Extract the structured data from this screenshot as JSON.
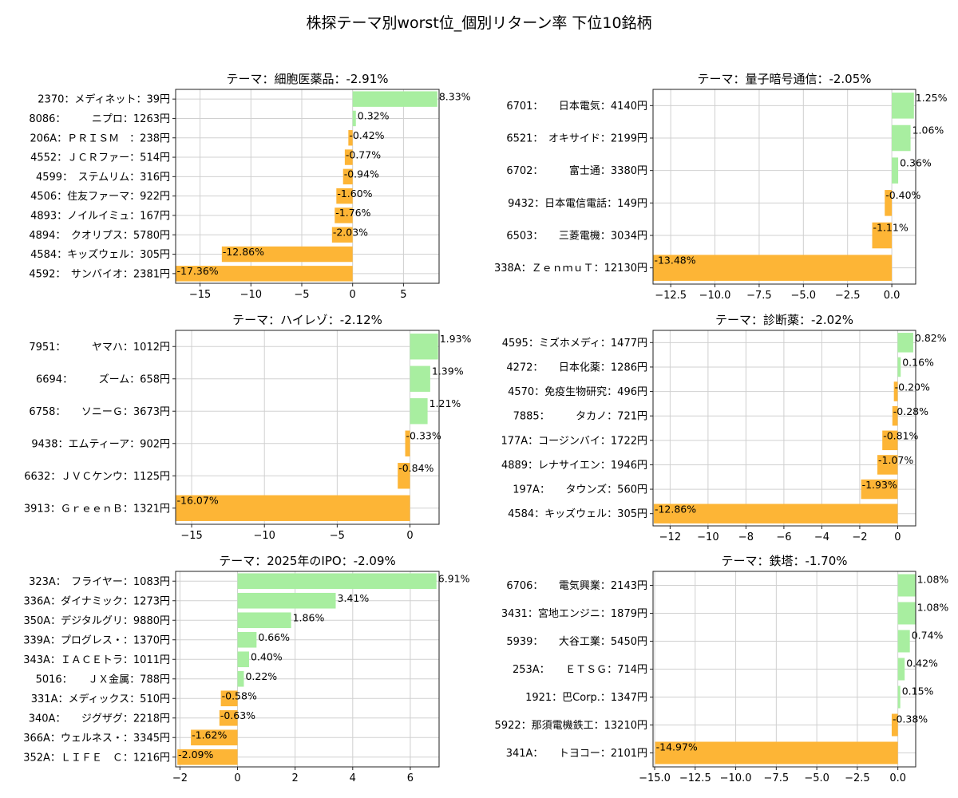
{
  "suptitle": "株探テーマ別worst位_個別リターン率 下位10銘柄",
  "colors": {
    "positive": "#a8eea0",
    "negative": "#fdb536"
  },
  "chart_data": [
    {
      "type": "bar",
      "orientation": "horizontal",
      "title": "テーマ：細胞医薬品：-2.91%",
      "categories": [
        "2370：メディネット：39円",
        "8086：　　　ニプロ：1263円",
        "206A：ＰＲＩＳＭ　：238円",
        "4552：ＪＣＲファー：514円",
        "4599：　ステムリム：316円",
        "4506：住友ファーマ：922円",
        "4893：ノイルイミュ：167円",
        "4894：　クオリプス：5780円",
        "4584：キッズウェル：305円",
        "4592：　サンバイオ：2381円"
      ],
      "values": [
        8.33,
        0.32,
        -0.42,
        -0.77,
        -0.94,
        -1.6,
        -1.76,
        -2.03,
        -12.86,
        -17.36
      ],
      "value_labels": [
        "8.33%",
        "0.32%",
        "-0.42%",
        "-0.77%",
        "-0.94%",
        "-1.60%",
        "-1.76%",
        "-2.03%",
        "-12.86%",
        "-17.36%"
      ],
      "xticks": [
        -15,
        -10,
        -5,
        0,
        5
      ],
      "xtick_labels": [
        "−15",
        "−10",
        "−5",
        "0",
        "5"
      ],
      "xlim": [
        -17.4,
        8.5
      ],
      "grid": true
    },
    {
      "type": "bar",
      "orientation": "horizontal",
      "title": "テーマ：量子暗号通信：-2.05%",
      "categories": [
        "6701：　　日本電気：4140円",
        "6521：　オキサイド：2199円",
        "6702：　　　富士通：3380円",
        "9432：日本電信電話：149円",
        "6503：　　三菱電機：3034円",
        "338A：ＺｅｎｍｕＴ：12130円"
      ],
      "values": [
        1.25,
        1.06,
        0.36,
        -0.4,
        -1.11,
        -13.48
      ],
      "value_labels": [
        "1.25%",
        "1.06%",
        "0.36%",
        "-0.40%",
        "-1.11%",
        "-13.48%"
      ],
      "xticks": [
        -12.5,
        -10.0,
        -7.5,
        -5.0,
        -2.5,
        0.0
      ],
      "xtick_labels": [
        "−12.5",
        "−10.0",
        "−7.5",
        "−5.0",
        "−2.5",
        "0.0"
      ],
      "xlim": [
        -13.5,
        1.35
      ],
      "grid": true
    },
    {
      "type": "bar",
      "orientation": "horizontal",
      "title": "テーマ：ハイレゾ：-2.12%",
      "categories": [
        "7951：　　　ヤマハ：1012円",
        "6694：　　　ズーム：658円",
        "6758：　　ソニーＧ：3673円",
        "9438：エムティーア：902円",
        "6632：ＪＶＣケンウ：1125円",
        "3913：ＧｒｅｅｎＢ：1321円"
      ],
      "values": [
        1.93,
        1.39,
        1.21,
        -0.33,
        -0.84,
        -16.07
      ],
      "value_labels": [
        "1.93%",
        "1.39%",
        "1.21%",
        "-0.33%",
        "-0.84%",
        "-16.07%"
      ],
      "xticks": [
        -15,
        -10,
        -5,
        0
      ],
      "xtick_labels": [
        "−15",
        "−10",
        "−5",
        "0"
      ],
      "xlim": [
        -16.1,
        2.0
      ],
      "grid": true
    },
    {
      "type": "bar",
      "orientation": "horizontal",
      "title": "テーマ：診断薬：-2.02%",
      "categories": [
        "4595：ミズホメディ：1477円",
        "4272：　　日本化薬：1286円",
        "4570：免疫生物研究：496円",
        "7885：　　　タカノ：721円",
        "177A：コージンバイ：1722円",
        "4889：レナサイエン：1946円",
        "197A：　　タウンズ：560円",
        "4584：キッズウェル：305円"
      ],
      "values": [
        0.82,
        0.16,
        -0.2,
        -0.28,
        -0.81,
        -1.07,
        -1.93,
        -12.86
      ],
      "value_labels": [
        "0.82%",
        "0.16%",
        "-0.20%",
        "-0.28%",
        "-0.81%",
        "-1.07%",
        "-1.93%",
        "-12.86%"
      ],
      "xticks": [
        -12,
        -10,
        -8,
        -6,
        -4,
        -2,
        0
      ],
      "xtick_labels": [
        "−12",
        "−10",
        "−8",
        "−6",
        "−4",
        "−2",
        "0"
      ],
      "xlim": [
        -12.9,
        0.95
      ],
      "grid": true
    },
    {
      "type": "bar",
      "orientation": "horizontal",
      "title": "テーマ：2025年のIPO：-2.09%",
      "categories": [
        "323A：　フライヤー：1083円",
        "336A：ダイナミック：1273円",
        "350A：デジタルグリ：9880円",
        "339A：プログレス・：1370円",
        "343A：ＩＡＣＥトラ：1011円",
        "5016：　　ＪＸ金属：788円",
        "331A：メディックス：510円",
        "340A：　　ジグザグ：2218円",
        "366A：ウェルネス・：3345円",
        "352A：ＬＩＦＥ　Ｃ：1216円"
      ],
      "values": [
        6.91,
        3.41,
        1.86,
        0.66,
        0.4,
        0.22,
        -0.58,
        -0.63,
        -1.62,
        -2.09
      ],
      "value_labels": [
        "6.91%",
        "3.41%",
        "1.86%",
        "0.66%",
        "0.40%",
        "0.22%",
        "-0.58%",
        "-0.63%",
        "-1.62%",
        "-2.09%"
      ],
      "xticks": [
        -2,
        0,
        2,
        4,
        6
      ],
      "xtick_labels": [
        "−2",
        "0",
        "2",
        "4",
        "6"
      ],
      "xlim": [
        -2.15,
        7.0
      ],
      "grid": true
    },
    {
      "type": "bar",
      "orientation": "horizontal",
      "title": "テーマ：鉄塔：-1.70%",
      "categories": [
        "6706：　　電気興業：2143円",
        "3431：宮地エンジニ：1879円",
        "5939：　　大谷工業：5450円",
        "253A：　　ＥＴＳＧ：714円",
        "1921：巴Corp.：1347円",
        "5922：那須電機鉄工：13210円",
        "341A：　　トヨコー：2101円"
      ],
      "values": [
        1.08,
        1.08,
        0.74,
        0.42,
        0.15,
        -0.38,
        -14.97
      ],
      "value_labels": [
        "1.08%",
        "1.08%",
        "0.74%",
        "0.42%",
        "0.15%",
        "-0.38%",
        "-14.97%"
      ],
      "xticks": [
        -15.0,
        -12.5,
        -10.0,
        -7.5,
        -5.0,
        -2.5,
        0.0
      ],
      "xtick_labels": [
        "−15.0",
        "−12.5",
        "−10.0",
        "−7.5",
        "−5.0",
        "−2.5",
        "0.0"
      ],
      "xlim": [
        -15.1,
        1.1
      ],
      "grid": true
    }
  ]
}
